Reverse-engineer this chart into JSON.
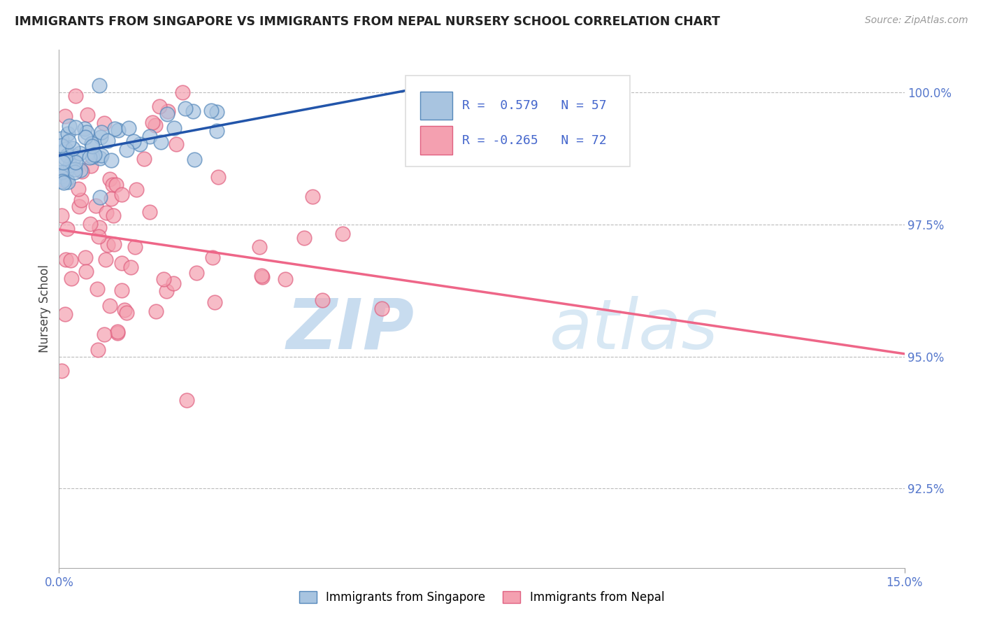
{
  "title": "IMMIGRANTS FROM SINGAPORE VS IMMIGRANTS FROM NEPAL NURSERY SCHOOL CORRELATION CHART",
  "source": "Source: ZipAtlas.com",
  "ylabel": "Nursery School",
  "xmin": 0.0,
  "xmax": 15.0,
  "ymin": 91.0,
  "ymax": 100.8,
  "yticks": [
    92.5,
    95.0,
    97.5,
    100.0
  ],
  "ytick_labels": [
    "92.5%",
    "95.0%",
    "97.5%",
    "100.0%"
  ],
  "legend_text1": "R =  0.579   N = 57",
  "legend_text2": "R = -0.265   N = 72",
  "blue_fill": "#A8C4E0",
  "blue_edge": "#5588BB",
  "pink_fill": "#F4A0B0",
  "pink_edge": "#E06080",
  "line_blue": "#2255AA",
  "line_pink": "#EE6688",
  "legend1_label": "Immigrants from Singapore",
  "legend2_label": "Immigrants from Nepal",
  "blue_line_x0": 0.0,
  "blue_line_x1": 6.5,
  "blue_line_y0": 98.8,
  "blue_line_y1": 100.1,
  "pink_line_x0": 0.0,
  "pink_line_x1": 15.0,
  "pink_line_y0": 97.4,
  "pink_line_y1": 95.05
}
